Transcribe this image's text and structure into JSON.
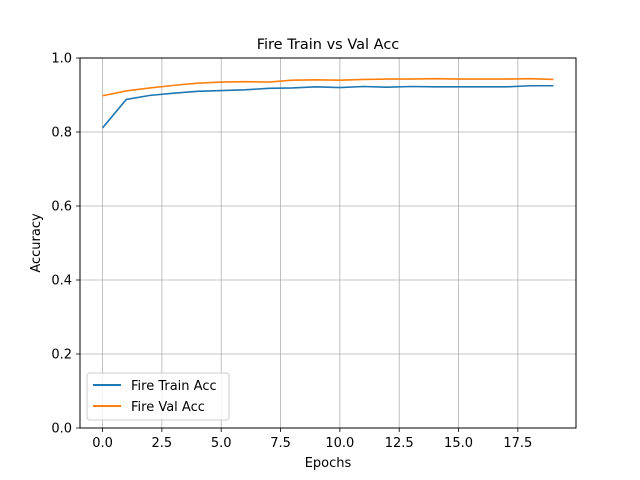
{
  "chart_data": {
    "type": "line",
    "title": "Fire Train vs Val Acc",
    "xlabel": "Epochs",
    "ylabel": "Accuracy",
    "xlim": [
      -0.95,
      19.95
    ],
    "ylim": [
      0,
      1.0
    ],
    "xticks": [
      "0.0",
      "2.5",
      "5.0",
      "7.5",
      "10.0",
      "12.5",
      "15.0",
      "17.5"
    ],
    "xtick_values": [
      0,
      2.5,
      5,
      7.5,
      10,
      12.5,
      15,
      17.5
    ],
    "yticks": [
      "0.0",
      "0.2",
      "0.4",
      "0.6",
      "0.8",
      "1.0"
    ],
    "ytick_values": [
      0,
      0.2,
      0.4,
      0.6,
      0.8,
      1.0
    ],
    "grid": true,
    "legend_position": "lower-left",
    "x": [
      0,
      1,
      2,
      3,
      4,
      5,
      6,
      7,
      8,
      9,
      10,
      11,
      12,
      13,
      14,
      15,
      16,
      17,
      18,
      19
    ],
    "series": [
      {
        "name": "Fire Train Acc",
        "color": "#1f77b4",
        "values": [
          0.811,
          0.888,
          0.899,
          0.905,
          0.91,
          0.912,
          0.914,
          0.918,
          0.919,
          0.922,
          0.92,
          0.923,
          0.921,
          0.923,
          0.922,
          0.922,
          0.922,
          0.922,
          0.925,
          0.925
        ]
      },
      {
        "name": "Fire Val Acc",
        "color": "#ff7f0e",
        "values": [
          0.898,
          0.911,
          0.919,
          0.926,
          0.932,
          0.935,
          0.936,
          0.935,
          0.94,
          0.941,
          0.94,
          0.942,
          0.943,
          0.943,
          0.944,
          0.943,
          0.943,
          0.943,
          0.944,
          0.942
        ]
      }
    ]
  }
}
